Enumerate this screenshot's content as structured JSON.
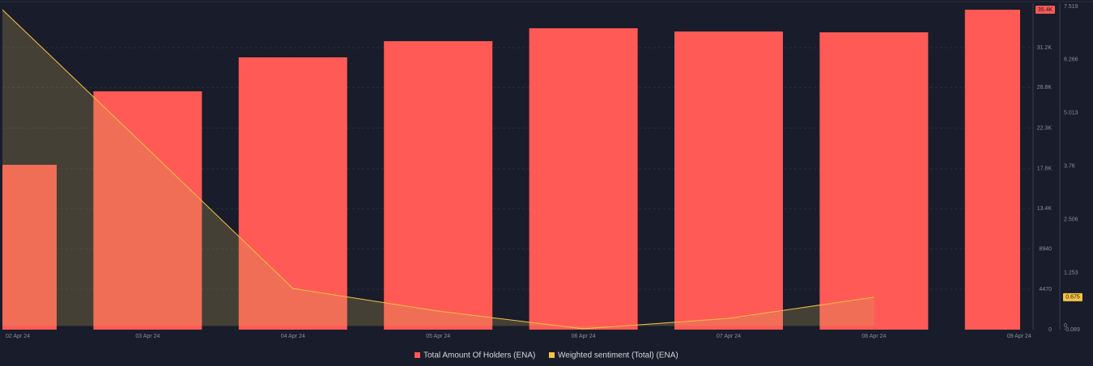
{
  "chart_data": {
    "type": "bar",
    "categories": [
      "02 Apr 24",
      "03 Apr 24",
      "04 Apr 24",
      "05 Apr 24",
      "06 Apr 24",
      "07 Apr 24",
      "08 Apr 24",
      "09 Apr 24"
    ],
    "series": [
      {
        "name": "Total Amount Of Holders (ENA)",
        "type": "bar",
        "color": "#ff5a55",
        "values": [
          18240,
          26370,
          30130,
          31920,
          33350,
          32990,
          32900,
          35400
        ],
        "badge": "35.4K"
      },
      {
        "name": "Weighted sentiment (Total) (ENA)",
        "type": "line",
        "axis": "y2",
        "color": "#f6c244",
        "values": [
          7.443,
          4.17,
          0.881,
          0.348,
          -0.07,
          0.177,
          0.675,
          null
        ],
        "badge": "0.675"
      }
    ],
    "ylim": [
      0,
      35760
    ],
    "yticks": [
      0,
      4470,
      8940,
      {
        "value": 13400,
        "label": "13.4K"
      },
      {
        "value": 17800,
        "label": "17.8K"
      },
      {
        "value": 22300,
        "label": "22.3K"
      },
      {
        "value": 26800,
        "label": "26.8K"
      },
      {
        "value": 31200,
        "label": "31.2K"
      }
    ],
    "y2lim": [
      -0.089,
      7.519
    ],
    "y2ticks": [
      -0.089,
      0,
      1.253,
      2.506,
      3.76,
      5.013,
      6.266,
      7.519
    ],
    "grid": true
  }
}
